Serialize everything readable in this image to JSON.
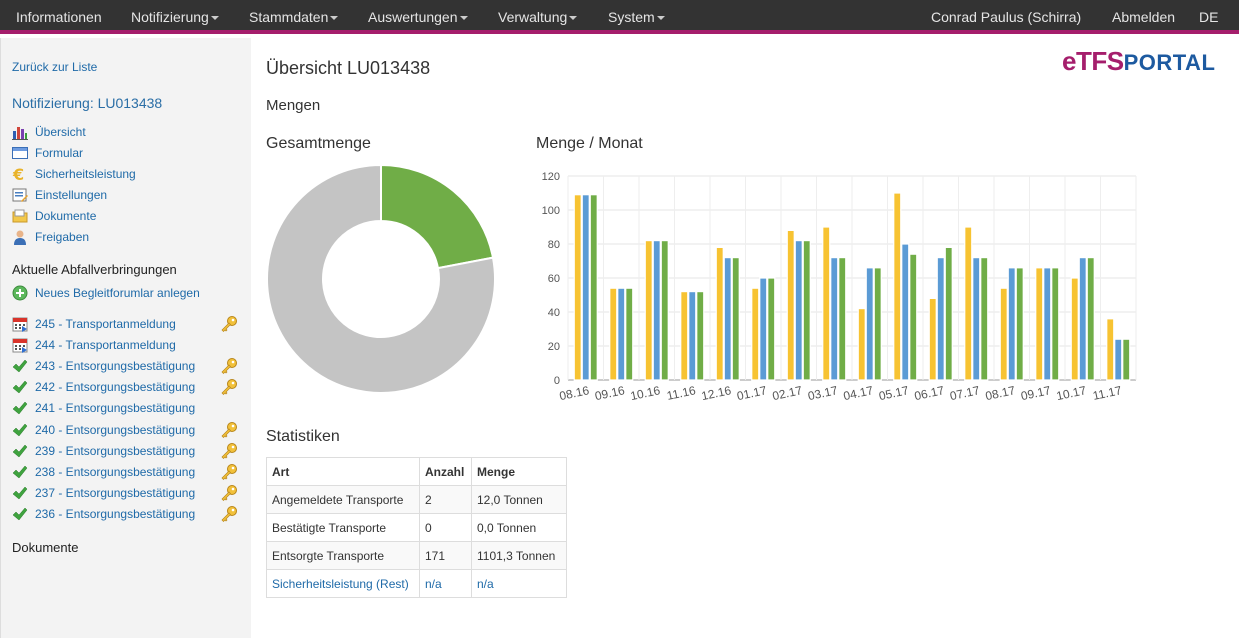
{
  "navbar": {
    "items": [
      "Informationen",
      "Notifizierung",
      "Stammdaten",
      "Auswertungen",
      "Verwaltung",
      "System"
    ],
    "user": "Conrad Paulus (Schirra)",
    "logout": "Abmelden",
    "language": "DE"
  },
  "sidebar": {
    "back_link": "Zurück zur Liste",
    "title": "Notifizierung: LU013438",
    "menu": [
      {
        "label": "Übersicht",
        "icon": "bar-chart-icon"
      },
      {
        "label": "Formular",
        "icon": "window-icon"
      },
      {
        "label": "Sicherheitsleistung",
        "icon": "euro-icon"
      },
      {
        "label": "Einstellungen",
        "icon": "settings-form-icon"
      },
      {
        "label": "Dokumente",
        "icon": "folder-icon"
      },
      {
        "label": "Freigaben",
        "icon": "user-icon"
      }
    ],
    "section_transfers": "Aktuelle Abfallverbringungen",
    "new_form": "Neues Begleitforumlar anlegen",
    "transfers": [
      {
        "label": "245 - Transportanmeldung",
        "icon": "calendar-icon",
        "key": true
      },
      {
        "label": "244 - Transportanmeldung",
        "icon": "calendar-icon",
        "key": false
      },
      {
        "label": "243 - Entsorgungsbestätigung",
        "icon": "check-icon",
        "key": true
      },
      {
        "label": "242 - Entsorgungsbestätigung",
        "icon": "check-icon",
        "key": true
      },
      {
        "label": "241 - Entsorgungsbestätigung",
        "icon": "check-icon",
        "key": false
      },
      {
        "label": "240 - Entsorgungsbestätigung",
        "icon": "check-icon",
        "key": true
      },
      {
        "label": "239 - Entsorgungsbestätigung",
        "icon": "check-icon",
        "key": true
      },
      {
        "label": "238 - Entsorgungsbestätigung",
        "icon": "check-icon",
        "key": true
      },
      {
        "label": "237 - Entsorgungsbestätigung",
        "icon": "check-icon",
        "key": true
      },
      {
        "label": "236 - Entsorgungsbestätigung",
        "icon": "check-icon",
        "key": true
      }
    ],
    "section_documents": "Dokumente"
  },
  "main": {
    "title": "Übersicht LU013438",
    "section_amounts": "Mengen",
    "total_heading": "Gesamtmenge",
    "monthly_heading": "Menge / Monat",
    "stats_heading": "Statistiken"
  },
  "logo": {
    "e": "e",
    "tfs": "TFS",
    "portal": "PORTAL"
  },
  "chart_data": [
    {
      "type": "pie",
      "donut": true,
      "title": "Gesamtmenge",
      "values": [
        22,
        78
      ],
      "colors": [
        "#70ad47",
        "#c4c4c4"
      ]
    },
    {
      "type": "bar",
      "title": "Menge / Monat",
      "categories": [
        "08.16",
        "09.16",
        "10.16",
        "11.16",
        "12.16",
        "01.17",
        "02.17",
        "03.17",
        "04.17",
        "05.17",
        "06.17",
        "07.17",
        "08.17",
        "09.17",
        "10.17",
        "11.17"
      ],
      "ylim": [
        0,
        120
      ],
      "yticks": [
        0,
        20,
        40,
        60,
        80,
        100,
        120
      ],
      "grid": true,
      "series": [
        {
          "values": [
            109,
            54,
            82,
            52,
            78,
            54,
            88,
            90,
            42,
            110,
            48,
            90,
            54,
            66,
            60,
            36
          ],
          "color": "#f7c332"
        },
        {
          "values": [
            109,
            54,
            82,
            52,
            72,
            60,
            82,
            72,
            66,
            80,
            72,
            72,
            66,
            66,
            72,
            24
          ],
          "color": "#5b9bd5"
        },
        {
          "values": [
            109,
            54,
            82,
            52,
            72,
            60,
            82,
            72,
            66,
            74,
            78,
            72,
            66,
            66,
            72,
            24
          ],
          "color": "#70ad47"
        }
      ]
    }
  ],
  "stats": {
    "headers": [
      "Art",
      "Anzahl",
      "Menge"
    ],
    "rows": [
      [
        "Angemeldete Transporte",
        "2",
        "12,0 Tonnen"
      ],
      [
        "Bestätigte Transporte",
        "0",
        "0,0 Tonnen"
      ],
      [
        "Entsorgte Transporte",
        "171",
        "1101,3 Tonnen"
      ],
      [
        "Sicherheitsleistung (Rest)",
        "n/a",
        "n/a"
      ]
    ]
  }
}
